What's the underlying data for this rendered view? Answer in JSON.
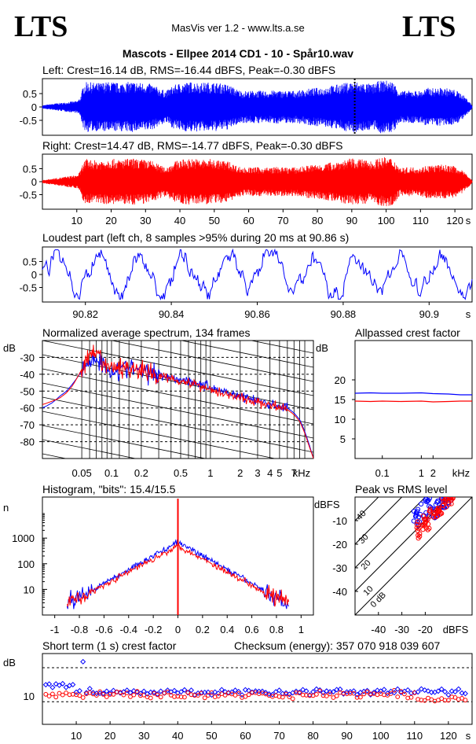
{
  "header": {
    "logo_left": "LTS",
    "logo_right": "LTS",
    "app_title": "MasVis ver 1.2 - www.lts.a.se",
    "file_title": "Mascots - Ellpee 2014 CD1 - 10 - Spår10.wav"
  },
  "colors": {
    "left": "#0000ff",
    "right": "#ff0000",
    "grid": "#000000"
  },
  "chart_data": [
    {
      "id": "left_waveform",
      "type": "area",
      "title": "Left: Crest=16.14 dB, RMS=-16.44 dBFS, Peak=-0.30 dBFS",
      "y_ticks": [
        "0.5",
        "0",
        "-0.5"
      ],
      "ylim": [
        -1,
        1
      ],
      "xlim": [
        0,
        125
      ],
      "marker_x": 90.86,
      "envelope": {
        "x": [
          0,
          2,
          4,
          6,
          8,
          10,
          11,
          12,
          13,
          14,
          16,
          18,
          20,
          22,
          24,
          26,
          28,
          30,
          32,
          34,
          36,
          38,
          40,
          42,
          44,
          46,
          48,
          50,
          52,
          54,
          56,
          58,
          60,
          62,
          64,
          66,
          68,
          70,
          72,
          74,
          76,
          78,
          80,
          82,
          84,
          86,
          88,
          90,
          92,
          94,
          96,
          98,
          100,
          102,
          104,
          106,
          108,
          110,
          112,
          114,
          116,
          118,
          120,
          122,
          124,
          125
        ],
        "amp": [
          0.06,
          0.1,
          0.14,
          0.16,
          0.2,
          0.22,
          0.35,
          0.85,
          0.95,
          0.92,
          0.9,
          0.93,
          0.95,
          0.9,
          0.93,
          0.95,
          0.92,
          0.9,
          0.85,
          0.7,
          0.6,
          0.8,
          0.9,
          0.92,
          0.95,
          0.9,
          0.93,
          0.92,
          0.88,
          0.85,
          0.7,
          0.6,
          0.6,
          0.62,
          0.6,
          0.6,
          0.63,
          0.6,
          0.62,
          0.6,
          0.65,
          0.7,
          0.72,
          0.75,
          0.8,
          0.85,
          0.9,
          0.95,
          0.93,
          0.9,
          0.85,
          0.98,
          1.0,
          0.95,
          0.6,
          0.6,
          0.62,
          0.6,
          0.72,
          0.7,
          0.72,
          0.7,
          0.65,
          0.5,
          0.25,
          0.05
        ]
      }
    },
    {
      "id": "right_waveform",
      "type": "area",
      "title": "Right: Crest=14.47 dB, RMS=-14.77 dBFS, Peak=-0.30 dBFS",
      "y_ticks": [
        "0.5",
        "0",
        "-0.5"
      ],
      "ylim": [
        -1,
        1
      ],
      "xlim": [
        0,
        125
      ],
      "x_ticks": [
        "10",
        "20",
        "30",
        "40",
        "50",
        "60",
        "70",
        "80",
        "90",
        "100",
        "110",
        "120"
      ],
      "x_unit": "s",
      "envelope": {
        "x": [
          0,
          2,
          4,
          6,
          8,
          10,
          11,
          12,
          13,
          14,
          16,
          18,
          20,
          22,
          24,
          26,
          28,
          30,
          32,
          34,
          36,
          38,
          40,
          42,
          44,
          46,
          48,
          50,
          52,
          54,
          56,
          58,
          60,
          62,
          64,
          66,
          68,
          70,
          72,
          74,
          76,
          78,
          80,
          82,
          84,
          86,
          88,
          90,
          92,
          94,
          96,
          98,
          100,
          102,
          104,
          106,
          108,
          110,
          112,
          114,
          116,
          118,
          120,
          122,
          124,
          125
        ],
        "amp": [
          0.06,
          0.1,
          0.14,
          0.18,
          0.22,
          0.25,
          0.4,
          0.8,
          0.88,
          0.85,
          0.82,
          0.86,
          0.9,
          0.85,
          0.88,
          0.9,
          0.87,
          0.85,
          0.8,
          0.65,
          0.55,
          0.75,
          0.85,
          0.88,
          0.9,
          0.85,
          0.88,
          0.86,
          0.82,
          0.8,
          0.65,
          0.55,
          0.55,
          0.56,
          0.55,
          0.55,
          0.57,
          0.55,
          0.56,
          0.55,
          0.6,
          0.65,
          0.66,
          0.7,
          0.75,
          0.8,
          0.85,
          0.9,
          0.88,
          0.85,
          0.8,
          0.92,
          0.95,
          0.9,
          0.55,
          0.55,
          0.57,
          0.55,
          0.65,
          0.64,
          0.66,
          0.64,
          0.6,
          0.45,
          0.22,
          0.05
        ]
      }
    },
    {
      "id": "loudest_part",
      "type": "line",
      "title": "Loudest part (left  ch, 8 samples >95% during 20 ms at 90.86 s)",
      "y_ticks": [
        "0.5",
        "0",
        "-0.5"
      ],
      "ylim": [
        -1,
        1
      ],
      "xlim": [
        90.81,
        90.91
      ],
      "x_ticks": [
        "90.82",
        "90.84",
        "90.86",
        "90.88",
        "90.9"
      ],
      "x_unit": "s"
    },
    {
      "id": "avg_spectrum",
      "type": "line",
      "title": "Normalized average spectrum, 134 frames",
      "ylabel": "dB",
      "xlabel": "kHz",
      "y_ticks": [
        "-30",
        "-40",
        "-50",
        "-60",
        "-70",
        "-80"
      ],
      "ylim": [
        -90,
        -20
      ],
      "x_ticks": [
        "0.05",
        "0.1",
        "0.2",
        "0.5",
        "1",
        "2",
        "3",
        "4",
        "5",
        "7"
      ],
      "series": [
        {
          "color": "left",
          "freq_khz": [
            0.02,
            0.025,
            0.03,
            0.035,
            0.04,
            0.045,
            0.05,
            0.06,
            0.07,
            0.08,
            0.09,
            0.1,
            0.12,
            0.15,
            0.2,
            0.25,
            0.3,
            0.4,
            0.5,
            0.6,
            0.8,
            1,
            1.5,
            2,
            3,
            4,
            5,
            6,
            7,
            8,
            9,
            10,
            11
          ],
          "db": [
            -60,
            -57,
            -53,
            -50,
            -46,
            -42,
            -38,
            -32,
            -30,
            -34,
            -36,
            -38,
            -37,
            -36,
            -38,
            -39,
            -40,
            -42,
            -43,
            -44,
            -46,
            -48,
            -51,
            -53,
            -56,
            -58,
            -59,
            -60,
            -63,
            -67,
            -74,
            -82,
            -90
          ]
        },
        {
          "color": "right",
          "freq_khz": [
            0.02,
            0.025,
            0.03,
            0.035,
            0.04,
            0.045,
            0.05,
            0.06,
            0.07,
            0.08,
            0.09,
            0.1,
            0.12,
            0.15,
            0.2,
            0.25,
            0.3,
            0.4,
            0.5,
            0.6,
            0.8,
            1,
            1.5,
            2,
            3,
            4,
            5,
            6,
            7,
            8,
            9,
            10,
            11
          ],
          "db": [
            -58,
            -56,
            -54,
            -51,
            -47,
            -42,
            -37,
            -30,
            -28,
            -33,
            -35,
            -37,
            -36,
            -36,
            -38,
            -40,
            -41,
            -42,
            -44,
            -45,
            -47,
            -49,
            -52,
            -54,
            -57,
            -58,
            -60,
            -61,
            -64,
            -68,
            -75,
            -83,
            -90
          ]
        }
      ]
    },
    {
      "id": "allpassed_crest",
      "type": "line",
      "title": "Allpassed crest factor",
      "ylabel": "dB",
      "xlabel": "kHz",
      "y_ticks": [
        "20",
        "15",
        "10",
        "5"
      ],
      "ylim": [
        0,
        30
      ],
      "x_ticks": [
        "0.1",
        "1",
        "2"
      ],
      "series": [
        {
          "color": "left",
          "freq_khz": [
            0.02,
            0.05,
            0.1,
            0.3,
            1,
            2,
            5,
            10,
            20
          ],
          "db": [
            16.6,
            16.7,
            16.6,
            16.6,
            16.7,
            16.5,
            16.4,
            16.2,
            16.2
          ]
        },
        {
          "color": "right",
          "freq_khz": [
            0.02,
            0.05,
            0.1,
            0.3,
            1,
            2,
            5,
            10,
            20
          ],
          "db": [
            14.6,
            14.5,
            14.6,
            14.5,
            14.6,
            14.4,
            14.5,
            14.6,
            14.6
          ]
        }
      ]
    },
    {
      "id": "histogram",
      "type": "line",
      "title": "Histogram, \"bits\": 15.4/15.5",
      "ylabel": "n",
      "y_ticks": [
        "1000",
        "100",
        "10"
      ],
      "x_ticks": [
        "-1",
        "-0.8",
        "-0.6",
        "-0.4",
        "-0.2",
        "0",
        "0.2",
        "0.4",
        "0.6",
        "0.8",
        "1"
      ],
      "xlim": [
        -1.1,
        1.1
      ]
    },
    {
      "id": "peak_vs_rms",
      "type": "scatter",
      "title": "Peak vs RMS level",
      "ylabel": "dBFS",
      "xlabel": "dBFS",
      "y_ticks": [
        "-10",
        "-20",
        "-30",
        "-40"
      ],
      "ylim": [
        -50,
        0
      ],
      "x_ticks": [
        "-40",
        "-30",
        "-20"
      ],
      "xlim": [
        -50,
        0
      ],
      "diag_labels": [
        "40",
        "30",
        "20",
        "10",
        "0 dB"
      ]
    },
    {
      "id": "short_term_crest",
      "type": "scatter",
      "title": "Short term (1 s) crest factor",
      "checksum": "Checksum (energy):   357 070 918 039 607",
      "ylabel": "dB",
      "y_ticks": [
        "10"
      ],
      "ylim": [
        0,
        25
      ],
      "xlim": [
        0,
        127
      ],
      "x_ticks": [
        "10",
        "20",
        "30",
        "40",
        "50",
        "60",
        "70",
        "80",
        "90",
        "100",
        "110",
        "120"
      ],
      "x_unit": "s"
    }
  ]
}
